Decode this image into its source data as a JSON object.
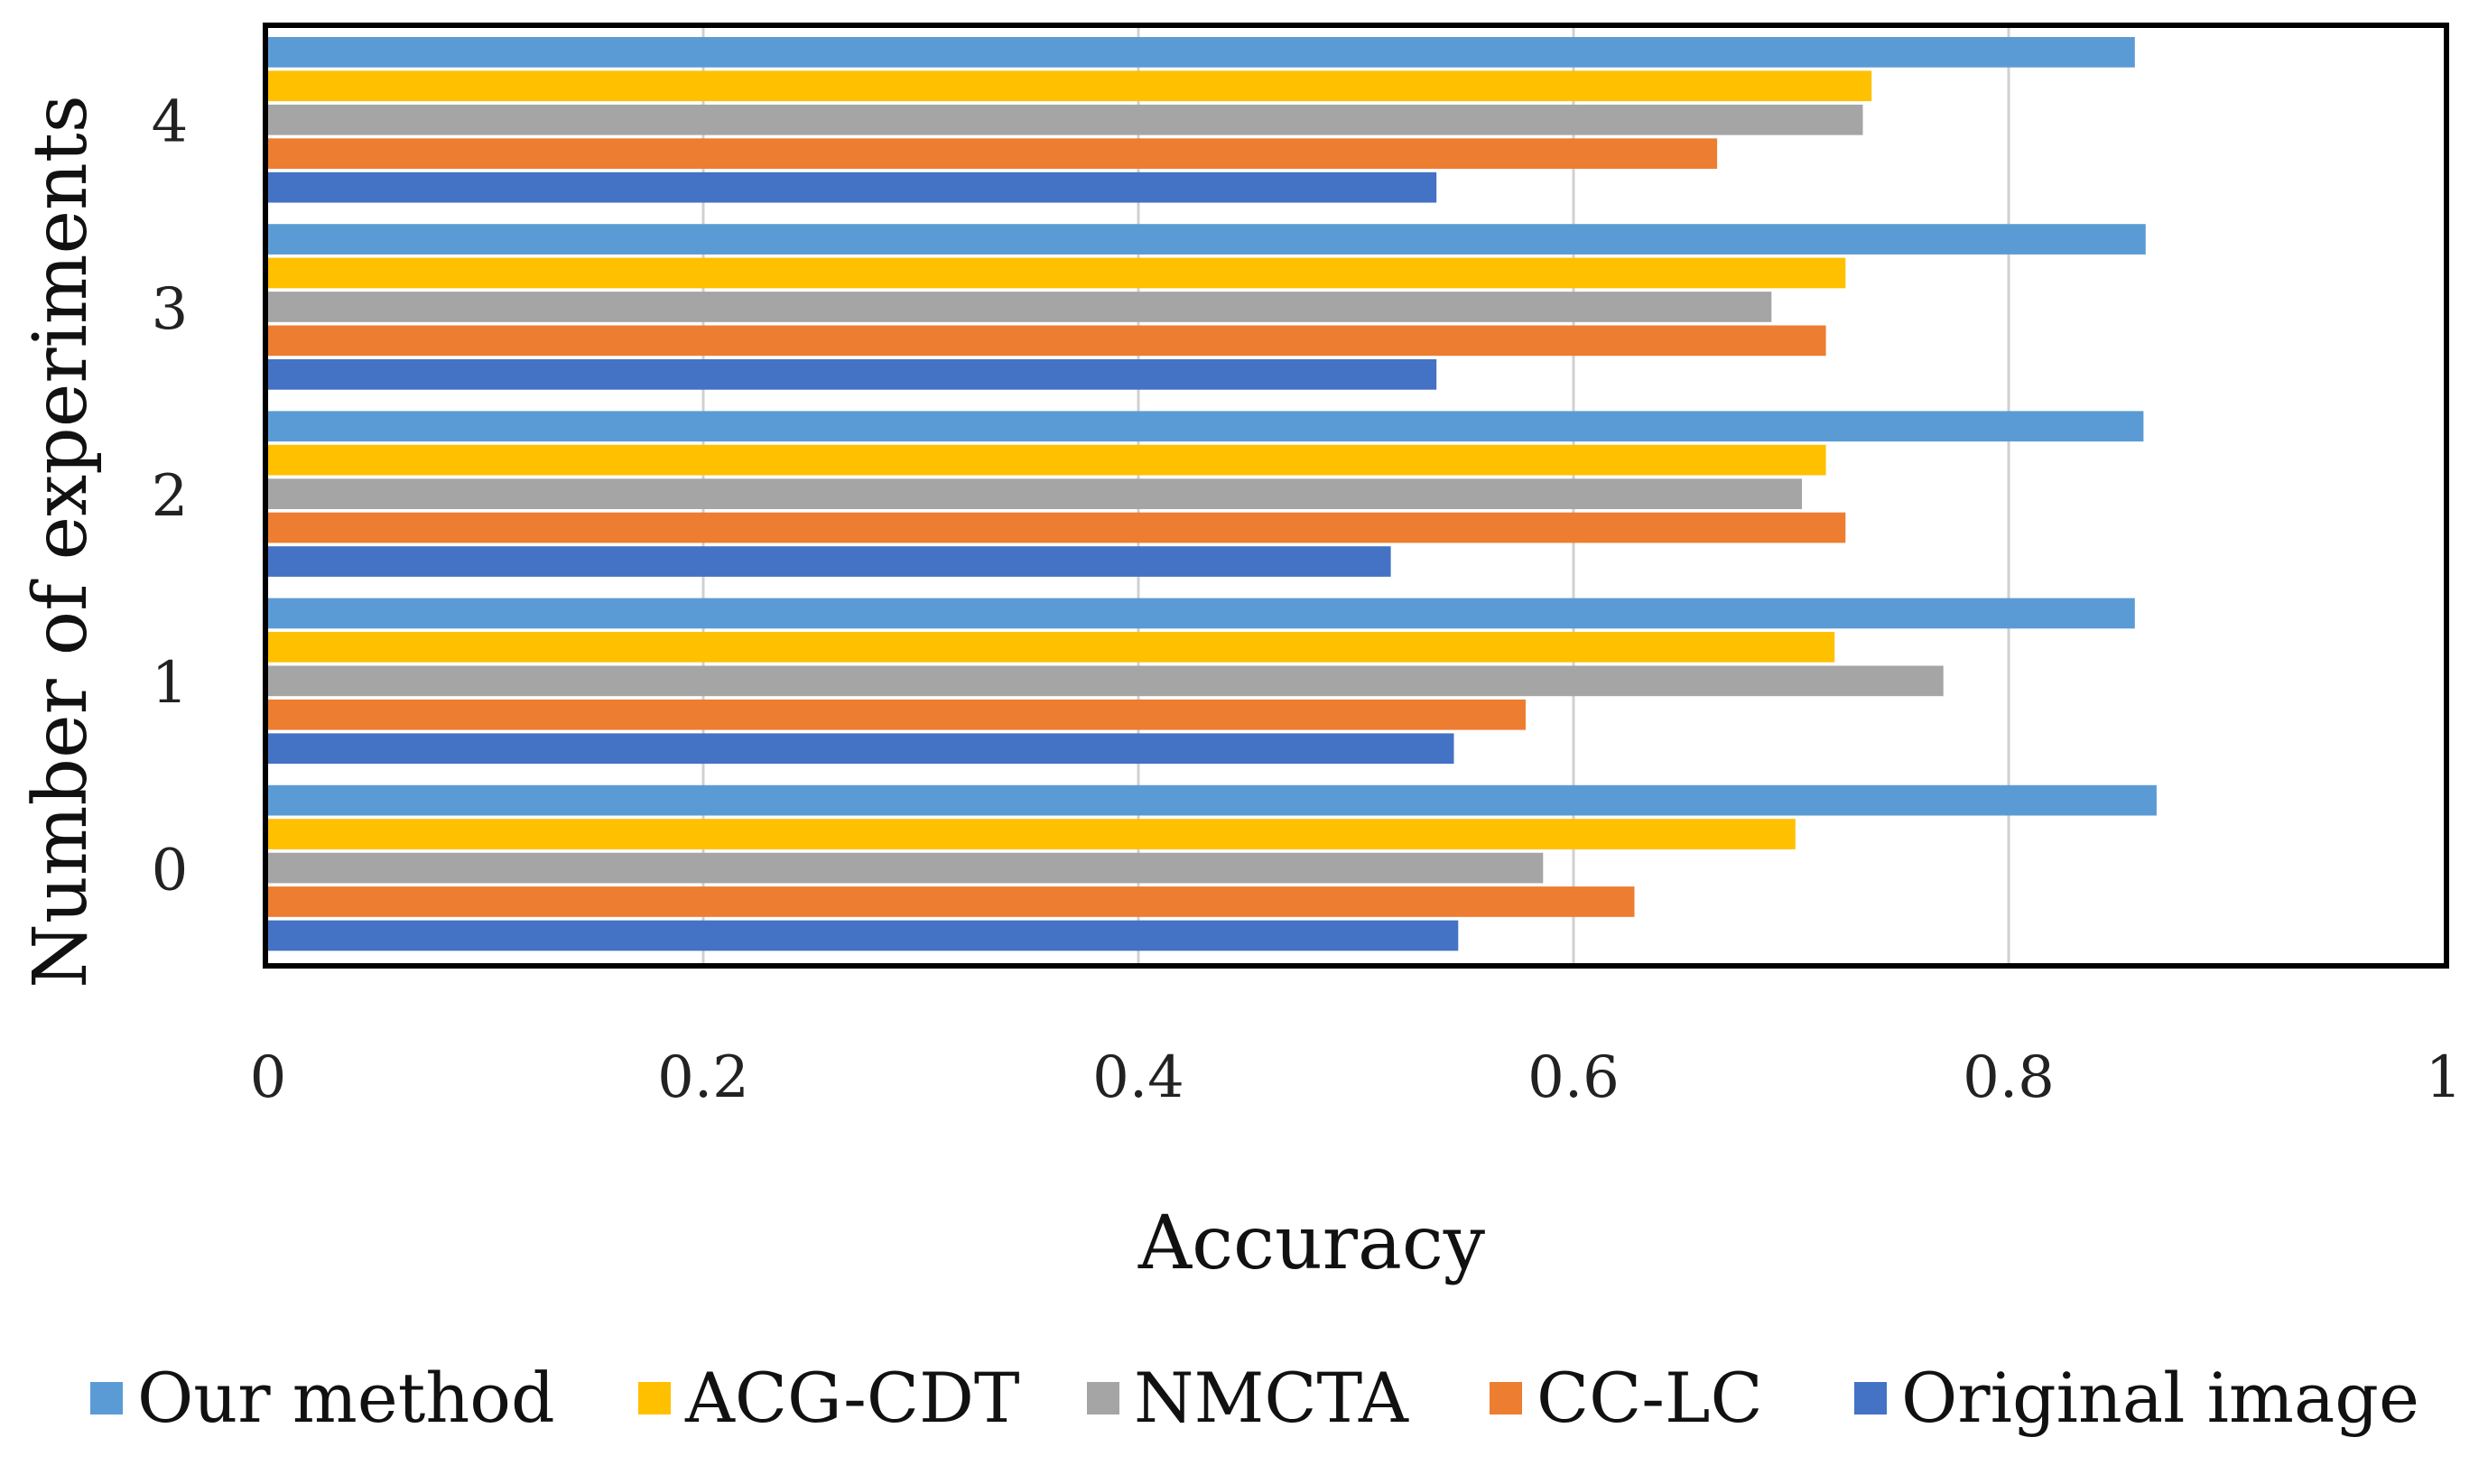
{
  "chart_data": {
    "type": "bar",
    "orientation": "horizontal",
    "title": "",
    "xlabel": "Accuracy",
    "ylabel": "Number of experiments",
    "xlim": [
      0,
      1
    ],
    "x_ticks": [
      "0",
      "0.2",
      "0.4",
      "0.6",
      "0.8",
      "1"
    ],
    "categories": [
      "0",
      "1",
      "2",
      "3",
      "4"
    ],
    "grid": "vertical",
    "legend_position": "bottom",
    "series": [
      {
        "name": "Our method",
        "color": "#5b9bd5",
        "values": [
          0.868,
          0.858,
          0.862,
          0.863,
          0.858
        ]
      },
      {
        "name": "ACG-CDT",
        "color": "#ffc000",
        "values": [
          0.702,
          0.72,
          0.716,
          0.725,
          0.737
        ]
      },
      {
        "name": "NMCTA",
        "color": "#a5a5a5",
        "values": [
          0.586,
          0.77,
          0.705,
          0.691,
          0.733
        ]
      },
      {
        "name": "CC-LC",
        "color": "#ed7d31",
        "values": [
          0.628,
          0.578,
          0.725,
          0.716,
          0.666
        ]
      },
      {
        "name": "Original image",
        "color": "#4472c4",
        "values": [
          0.547,
          0.545,
          0.516,
          0.537,
          0.537
        ]
      }
    ]
  }
}
